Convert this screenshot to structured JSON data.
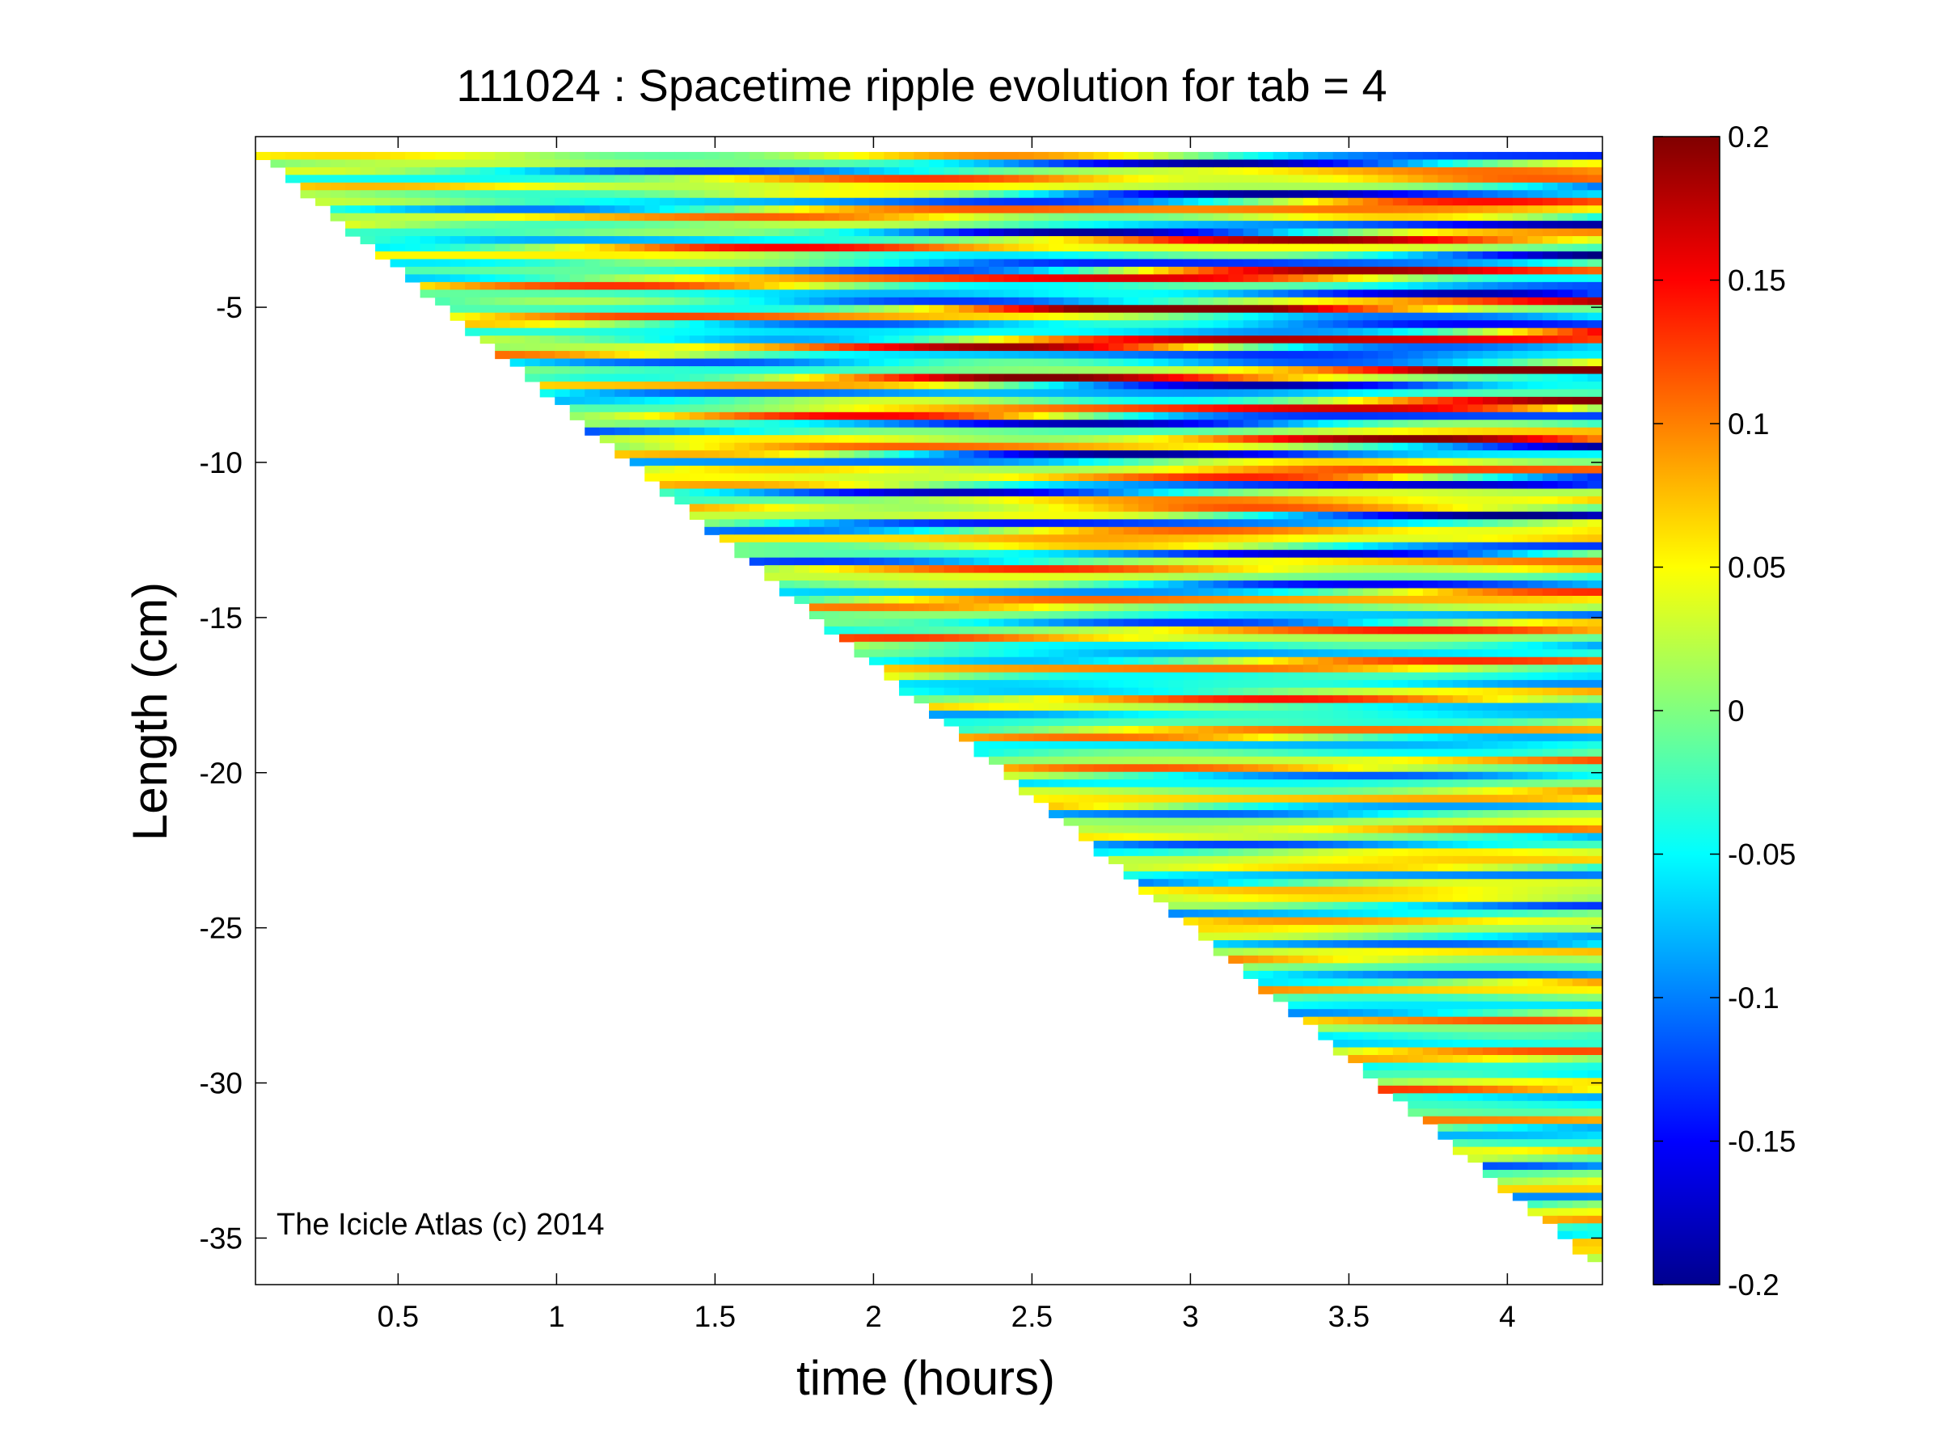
{
  "chart_data": {
    "type": "heatmap",
    "title": "111024 : Spacetime ripple evolution for tab = 4",
    "xlabel": "time (hours)",
    "ylabel": "Length (cm)",
    "xlim": [
      0.05,
      4.3
    ],
    "ylim": [
      -36.5,
      0.5
    ],
    "x_ticks": [
      0.5,
      1,
      1.5,
      2,
      2.5,
      3,
      3.5,
      4
    ],
    "x_tick_labels": [
      "0.5",
      "1",
      "1.5",
      "2",
      "2.5",
      "3",
      "3.5",
      "4"
    ],
    "y_ticks": [
      -5,
      -10,
      -15,
      -20,
      -25,
      -30,
      -35
    ],
    "y_tick_labels": [
      "-5",
      "-10",
      "-15",
      "-20",
      "-25",
      "-30",
      "-35"
    ],
    "colorbar": {
      "colormap": "jet",
      "clim": [
        -0.2,
        0.2
      ],
      "ticks": [
        0.2,
        0.15,
        0.1,
        0.05,
        0,
        -0.05,
        -0.1,
        -0.15,
        -0.2
      ],
      "tick_labels": [
        "0.2",
        "0.15",
        "0.1",
        "0.05",
        "0",
        "-0.05",
        "-0.1",
        "-0.15",
        "-0.2"
      ]
    },
    "data_boundary": {
      "description": "icicle tip position over time",
      "time": [
        0.05,
        4.25
      ],
      "length": [
        0,
        -35.6
      ]
    },
    "annotation": "The Icicle Atlas (c) 2014"
  }
}
